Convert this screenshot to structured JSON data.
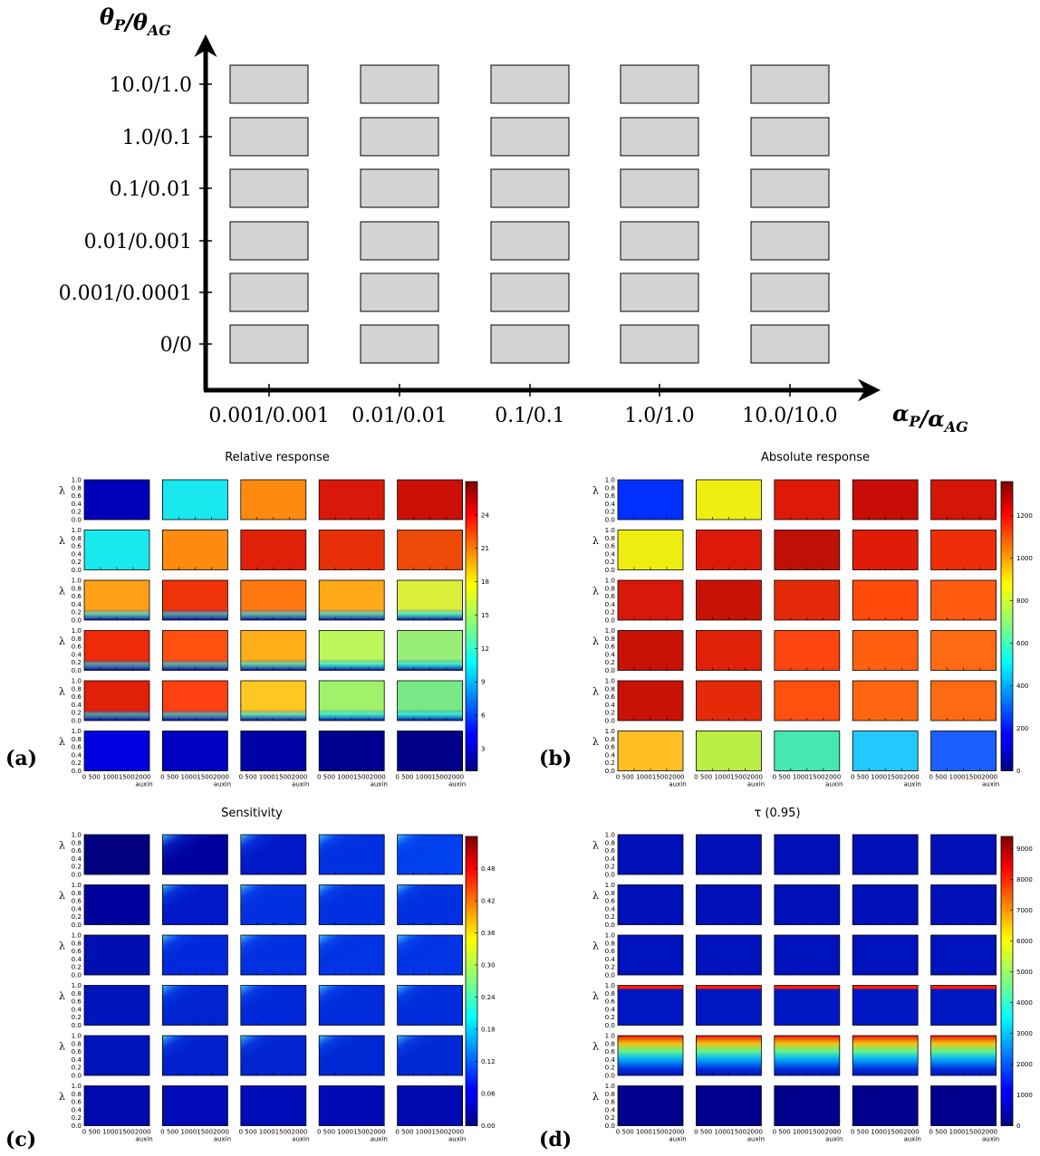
{
  "schematic": {
    "y_axis_label": "θP/θAG",
    "x_axis_label": "αP/αAG",
    "y_ticks": [
      "10.0/1.0",
      "1.0/0.1",
      "0.1/0.01",
      "0.01/0.001",
      "0.001/0.0001",
      "0/0"
    ],
    "x_ticks": [
      "0.001/0.001",
      "0.01/0.01",
      "0.1/0.1",
      "1.0/1.0",
      "10.0/10.0"
    ],
    "cell_color": "#d3d3d3"
  },
  "grid_common": {
    "y_tick_labels": [
      "0.0",
      "0.2",
      "0.4",
      "0.6",
      "0.8",
      "1.0"
    ],
    "x_tick_labels": [
      "0",
      "500",
      "1000",
      "1500",
      "2000"
    ],
    "x_axis_label": "auxin",
    "y_axis_label": "λ"
  },
  "chart_data": [
    {
      "type": "heatmap",
      "panel_label": "(a)",
      "title": "Relative response",
      "ylabel": "λ",
      "xlabel": "auxin",
      "xlim": [
        0,
        2000
      ],
      "ylim": [
        0.0,
        1.0
      ],
      "colorbar_ticks": [
        "3",
        "6",
        "9",
        "12",
        "15",
        "18",
        "21",
        "24"
      ],
      "colorbar_range": [
        1,
        27
      ],
      "rows": [
        [
          "#0000b8",
          "#19e8ee",
          "#ff8a10",
          "#d81808",
          "#cc1006"
        ],
        [
          "#19e8ee",
          "#ff8a10",
          "#e02008",
          "#e83008",
          "#ee4a08"
        ],
        [
          "#ffa018",
          "#f03208",
          "#ff7810",
          "#ffa818",
          "#ddee3a"
        ],
        [
          "#ee2a08",
          "#ff5010",
          "#ffb018",
          "#bbf65a",
          "#99ee77"
        ],
        [
          "#e02008",
          "#ff4010",
          "#ffc820",
          "#a0f26a",
          "#78e886"
        ],
        [
          "#0000e0",
          "#0000c4",
          "#0000a6",
          "#000090",
          "#000088"
        ]
      ]
    },
    {
      "type": "heatmap",
      "panel_label": "(b)",
      "title": "Absolute response",
      "ylabel": "λ",
      "xlabel": "auxin",
      "xlim": [
        0,
        2000
      ],
      "ylim": [
        0.0,
        1.0
      ],
      "colorbar_ticks": [
        "0",
        "200",
        "400",
        "600",
        "800",
        "1000",
        "1200"
      ],
      "colorbar_range": [
        0,
        1360
      ],
      "rows": [
        [
          "#0030ff",
          "#eeee10",
          "#dd1a08",
          "#c80e06",
          "#d41606"
        ],
        [
          "#eeee10",
          "#dd1a08",
          "#c01006",
          "#e01c08",
          "#ee2e08"
        ],
        [
          "#d81808",
          "#c81206",
          "#e42a08",
          "#ff4a0c",
          "#ff5a10"
        ],
        [
          "#c81206",
          "#e02008",
          "#ff4610",
          "#ff6010",
          "#ff6a12"
        ],
        [
          "#c81206",
          "#e42a08",
          "#ff5010",
          "#ff6610",
          "#ff6a12"
        ],
        [
          "#ffc024",
          "#bbee44",
          "#44e8b0",
          "#22c8ff",
          "#1a60ff"
        ]
      ]
    },
    {
      "type": "heatmap",
      "panel_label": "(c)",
      "title": "Sensitivity",
      "ylabel": "λ",
      "xlabel": "auxin",
      "xlim": [
        0,
        2000
      ],
      "ylim": [
        0.0,
        1.0
      ],
      "colorbar_ticks": [
        "0.00",
        "0.06",
        "0.12",
        "0.18",
        "0.24",
        "0.30",
        "0.36",
        "0.42",
        "0.48"
      ],
      "colorbar_range": [
        0.0,
        0.54
      ],
      "rows": [
        [
          "#000080",
          "#00009c",
          "#0018c8",
          "#0030e0",
          "#0040ee"
        ],
        [
          "#00009c",
          "#0018c8",
          "#0030e0",
          "#0030e0",
          "#0030e0"
        ],
        [
          "#0010b0",
          "#0028dc",
          "#0030e0",
          "#0034e4",
          "#0034e4"
        ],
        [
          "#0014bc",
          "#0024d0",
          "#0028d8",
          "#002cdc",
          "#002cdc"
        ],
        [
          "#0014bc",
          "#0020cc",
          "#0024d0",
          "#0028d4",
          "#0028d4"
        ],
        [
          "#0008b0",
          "#000ab8",
          "#000cb8",
          "#000ab4",
          "#000ab0"
        ]
      ]
    },
    {
      "type": "heatmap",
      "panel_label": "(d)",
      "title": "τ (0.95)",
      "ylabel": "λ",
      "xlabel": "auxin",
      "xlim": [
        0,
        2000
      ],
      "ylim": [
        0.0,
        1.0
      ],
      "colorbar_ticks": [
        "0",
        "1000",
        "2000",
        "3000",
        "4000",
        "5000",
        "6000",
        "7000",
        "8000",
        "9000"
      ],
      "colorbar_range": [
        0,
        9400
      ],
      "rows": [
        [
          "#0010b8",
          "#0010b8",
          "#0010b8",
          "#0010b8",
          "#0010b8"
        ],
        [
          "#0010b8",
          "#0010b8",
          "#0010b8",
          "#0010b8",
          "#0010b8"
        ],
        [
          "#0012bc",
          "#0012bc",
          "#0012bc",
          "#0012bc",
          "#0012bc"
        ],
        [
          "#0018c4",
          "#0018c4",
          "#0018c4",
          "#0018c4",
          "#0018c4"
        ],
        [
          "#0030e0",
          "#0030e0",
          "#0030e0",
          "#0030e0",
          "#0030e0"
        ],
        [
          "#00008c",
          "#00008c",
          "#00008c",
          "#00008c",
          "#00008c"
        ]
      ]
    }
  ]
}
